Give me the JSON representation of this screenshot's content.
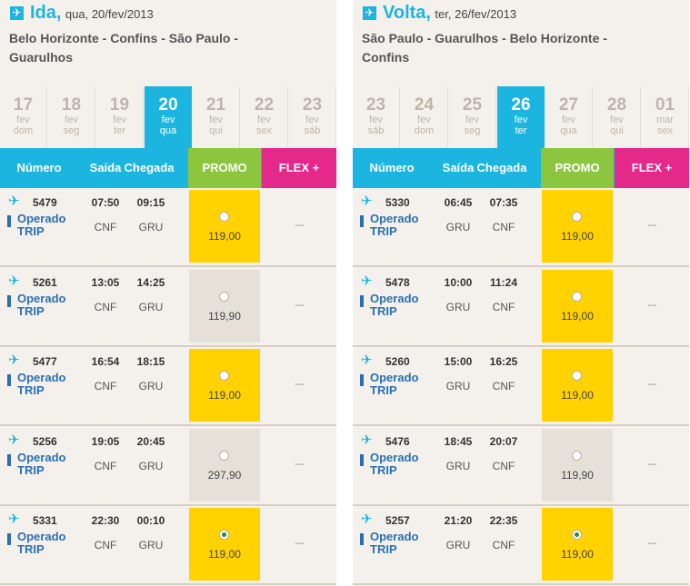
{
  "colors": {
    "accent": "#1cb5e0",
    "promo": "#8cc63f",
    "flex": "#e4298a",
    "selected_fare": "#ffd200"
  },
  "columns": {
    "numero": "Número",
    "saida": "Saída",
    "chegada": "Chegada",
    "promo": "PROMO",
    "flex": "FLEX +"
  },
  "panels": [
    {
      "icon": "plane-icon",
      "direction": "Ida,",
      "date": "qua, 20/fev/2013",
      "route": "Belo Horizonte - Confins - São Paulo - Guarulhos",
      "days": [
        {
          "num": "17",
          "mon": "fev",
          "wd": "dom",
          "selected": false
        },
        {
          "num": "18",
          "mon": "fev",
          "wd": "seg",
          "selected": false
        },
        {
          "num": "19",
          "mon": "fev",
          "wd": "ter",
          "selected": false
        },
        {
          "num": "20",
          "mon": "fev",
          "wd": "qua",
          "selected": true
        },
        {
          "num": "21",
          "mon": "fev",
          "wd": "qui",
          "selected": false
        },
        {
          "num": "22",
          "mon": "fev",
          "wd": "sex",
          "selected": false
        },
        {
          "num": "23",
          "mon": "fev",
          "wd": "sáb",
          "selected": false
        }
      ],
      "flights": [
        {
          "number": "5479",
          "operated": "Operado",
          "carrier": "TRIP",
          "dep": "07:50",
          "arr": "09:15",
          "orig": "CNF",
          "dest": "GRU",
          "price": "119,00",
          "highlight": true,
          "checked": false,
          "flex": "---"
        },
        {
          "number": "5261",
          "operated": "Operado",
          "carrier": "TRIP",
          "dep": "13:05",
          "arr": "14:25",
          "orig": "CNF",
          "dest": "GRU",
          "price": "119,90",
          "highlight": false,
          "checked": false,
          "flex": "---"
        },
        {
          "number": "5477",
          "operated": "Operado",
          "carrier": "TRIP",
          "dep": "16:54",
          "arr": "18:15",
          "orig": "CNF",
          "dest": "GRU",
          "price": "119,00",
          "highlight": true,
          "checked": false,
          "flex": "---"
        },
        {
          "number": "5256",
          "operated": "Operado",
          "carrier": "TRIP",
          "dep": "19:05",
          "arr": "20:45",
          "orig": "CNF",
          "dest": "GRU",
          "price": "297,90",
          "highlight": false,
          "checked": false,
          "flex": "---"
        },
        {
          "number": "5331",
          "operated": "Operado",
          "carrier": "TRIP",
          "dep": "22:30",
          "arr": "00:10",
          "orig": "CNF",
          "dest": "GRU",
          "price": "119,00",
          "highlight": true,
          "checked": true,
          "flex": "---"
        }
      ]
    },
    {
      "icon": "plane-icon",
      "direction": "Volta,",
      "date": "ter, 26/fev/2013",
      "route": "São Paulo - Guarulhos - Belo Horizonte - Confins",
      "days": [
        {
          "num": "23",
          "mon": "fev",
          "wd": "sáb",
          "selected": false
        },
        {
          "num": "24",
          "mon": "fev",
          "wd": "dom",
          "selected": false
        },
        {
          "num": "25",
          "mon": "fev",
          "wd": "seg",
          "selected": false
        },
        {
          "num": "26",
          "mon": "fev",
          "wd": "ter",
          "selected": true
        },
        {
          "num": "27",
          "mon": "fev",
          "wd": "qua",
          "selected": false
        },
        {
          "num": "28",
          "mon": "fev",
          "wd": "qui",
          "selected": false
        },
        {
          "num": "01",
          "mon": "mar",
          "wd": "sex",
          "selected": false
        }
      ],
      "flights": [
        {
          "number": "5330",
          "operated": "Operado",
          "carrier": "TRIP",
          "dep": "06:45",
          "arr": "07:35",
          "orig": "GRU",
          "dest": "CNF",
          "price": "119,00",
          "highlight": true,
          "checked": false,
          "flex": "---"
        },
        {
          "number": "5478",
          "operated": "Operado",
          "carrier": "TRIP",
          "dep": "10:00",
          "arr": "11:24",
          "orig": "GRU",
          "dest": "CNF",
          "price": "119,00",
          "highlight": true,
          "checked": false,
          "flex": "---"
        },
        {
          "number": "5260",
          "operated": "Operado",
          "carrier": "TRIP",
          "dep": "15:00",
          "arr": "16:25",
          "orig": "GRU",
          "dest": "CNF",
          "price": "119,00",
          "highlight": true,
          "checked": false,
          "flex": "---"
        },
        {
          "number": "5476",
          "operated": "Operado",
          "carrier": "TRIP",
          "dep": "18:45",
          "arr": "20:07",
          "orig": "GRU",
          "dest": "CNF",
          "price": "119,90",
          "highlight": false,
          "checked": false,
          "flex": "---"
        },
        {
          "number": "5257",
          "operated": "Operado",
          "carrier": "TRIP",
          "dep": "21:20",
          "arr": "22:35",
          "orig": "GRU",
          "dest": "CNF",
          "price": "119,00",
          "highlight": true,
          "checked": true,
          "flex": "---"
        }
      ]
    }
  ]
}
